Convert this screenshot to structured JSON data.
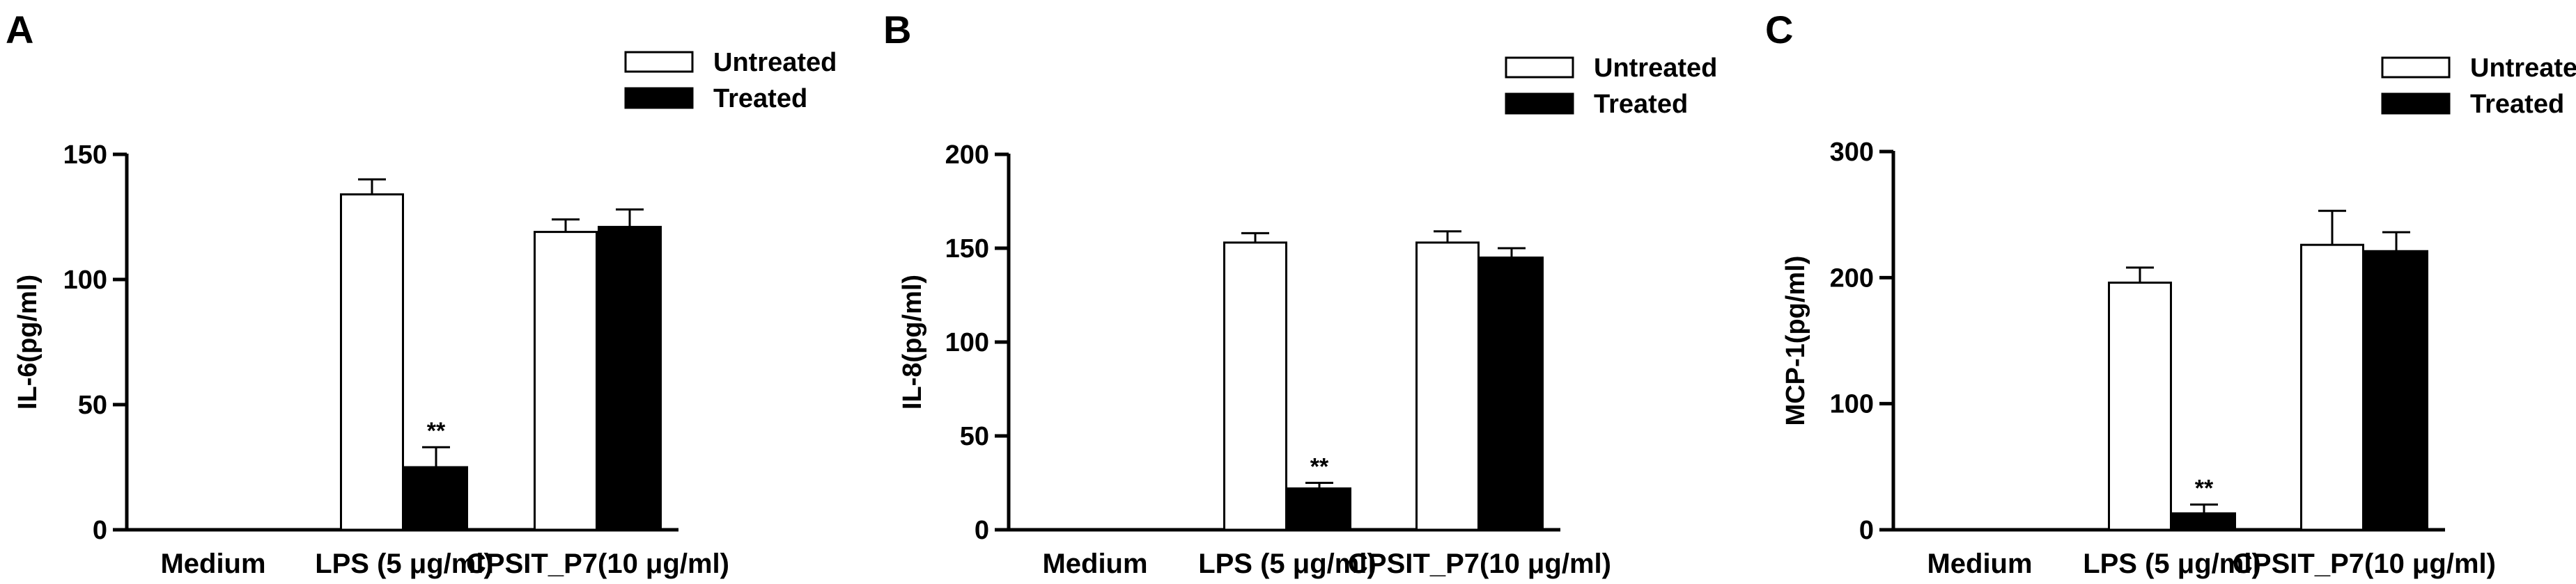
{
  "chart_data": [
    {
      "type": "bar",
      "panel_label": "A",
      "ylabel": "IL-6(pg/ml)",
      "categories": [
        "Medium",
        "LPS (5 μg/ml)",
        "CPSIT_P7(10 μg/ml)"
      ],
      "ylim": [
        0,
        150
      ],
      "yticks": [
        0,
        50,
        100,
        150
      ],
      "legend": [
        "Untreated",
        "Treated"
      ],
      "legend_position": "top-right",
      "series": [
        {
          "name": "Untreated",
          "fill": "#ffffff",
          "values": [
            0,
            134,
            119
          ],
          "errors": [
            0,
            6,
            5
          ]
        },
        {
          "name": "Treated",
          "fill": "#000000",
          "values": [
            0,
            25,
            121
          ],
          "errors": [
            0,
            8,
            7
          ]
        }
      ],
      "annotations": [
        {
          "category": 1,
          "series": 1,
          "text": "**"
        }
      ]
    },
    {
      "type": "bar",
      "panel_label": "B",
      "ylabel": "IL-8(pg/ml)",
      "categories": [
        "Medium",
        "LPS (5 μg/ml)",
        "CPSIT_P7(10 μg/ml)"
      ],
      "ylim": [
        0,
        200
      ],
      "yticks": [
        0,
        50,
        100,
        150,
        200
      ],
      "legend": [
        "Untreated",
        "Treated"
      ],
      "legend_position": "top-right",
      "series": [
        {
          "name": "Untreated",
          "fill": "#ffffff",
          "values": [
            0,
            153,
            153
          ],
          "errors": [
            0,
            5,
            6
          ]
        },
        {
          "name": "Treated",
          "fill": "#000000",
          "values": [
            0,
            22,
            145
          ],
          "errors": [
            0,
            3,
            5
          ]
        }
      ],
      "annotations": [
        {
          "category": 1,
          "series": 1,
          "text": "**"
        }
      ]
    },
    {
      "type": "bar",
      "panel_label": "C",
      "ylabel": "MCP-1(pg/ml)",
      "categories": [
        "Medium",
        "LPS (5 μg/ml)",
        "CPSIT_P7(10 μg/ml)"
      ],
      "ylim": [
        0,
        300
      ],
      "yticks": [
        0,
        100,
        200,
        300
      ],
      "legend": [
        "Untreated",
        "Treated"
      ],
      "legend_position": "top-right",
      "series": [
        {
          "name": "Untreated",
          "fill": "#ffffff",
          "values": [
            0,
            196,
            226
          ],
          "errors": [
            0,
            12,
            27
          ]
        },
        {
          "name": "Treated",
          "fill": "#000000",
          "values": [
            0,
            13,
            221
          ],
          "errors": [
            0,
            7,
            15
          ]
        }
      ],
      "annotations": [
        {
          "category": 1,
          "series": 1,
          "text": "**"
        }
      ]
    }
  ]
}
